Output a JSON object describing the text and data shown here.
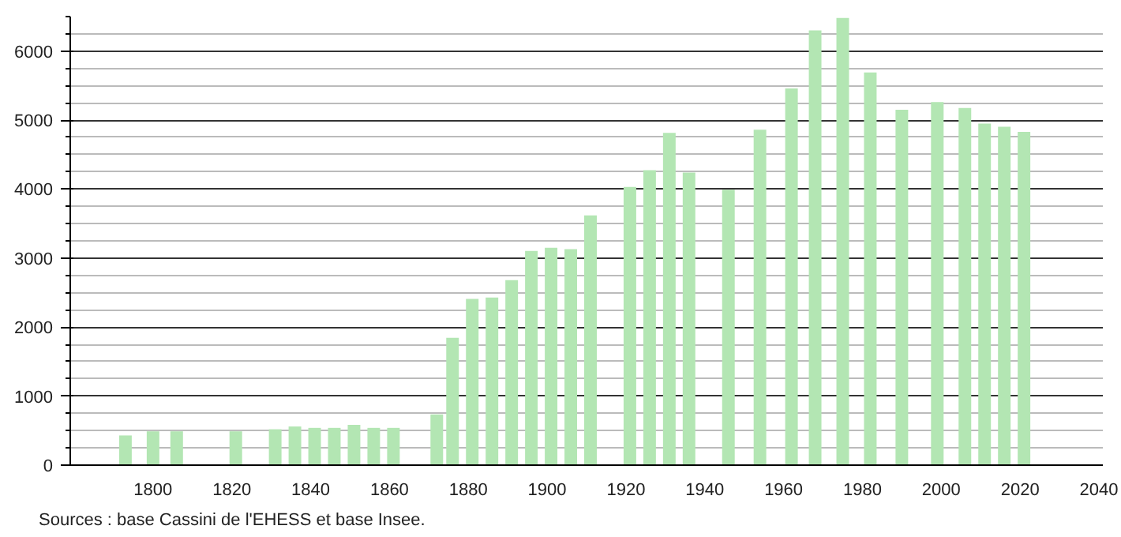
{
  "chart_data": {
    "type": "bar",
    "x": [
      1793,
      1800,
      1806,
      1821,
      1831,
      1836,
      1841,
      1846,
      1851,
      1856,
      1861,
      1872,
      1876,
      1881,
      1886,
      1891,
      1896,
      1901,
      1906,
      1911,
      1921,
      1926,
      1931,
      1936,
      1946,
      1954,
      1962,
      1968,
      1975,
      1982,
      1990,
      1999,
      2006,
      2011,
      2016,
      2021
    ],
    "values": [
      430,
      490,
      490,
      490,
      520,
      560,
      540,
      540,
      585,
      540,
      540,
      735,
      1845,
      2410,
      2430,
      2680,
      3105,
      3150,
      3130,
      3620,
      4030,
      4275,
      4815,
      4240,
      3990,
      4860,
      5460,
      6300,
      6480,
      5690,
      5150,
      5260,
      5175,
      4950,
      4905,
      4830
    ],
    "color": "#b3e6b3",
    "xlim": [
      1779,
      2041
    ],
    "xticks": [
      1800,
      1820,
      1840,
      1860,
      1880,
      1900,
      1920,
      1940,
      1960,
      1980,
      2000,
      2020,
      2040
    ],
    "ylim": [
      0,
      6500
    ],
    "yticks": [
      0,
      1000,
      2000,
      3000,
      4000,
      5000,
      6000
    ],
    "grid": "y",
    "annotations": [
      "Sources : base Cassini de l'EHESS et base Insee."
    ]
  }
}
